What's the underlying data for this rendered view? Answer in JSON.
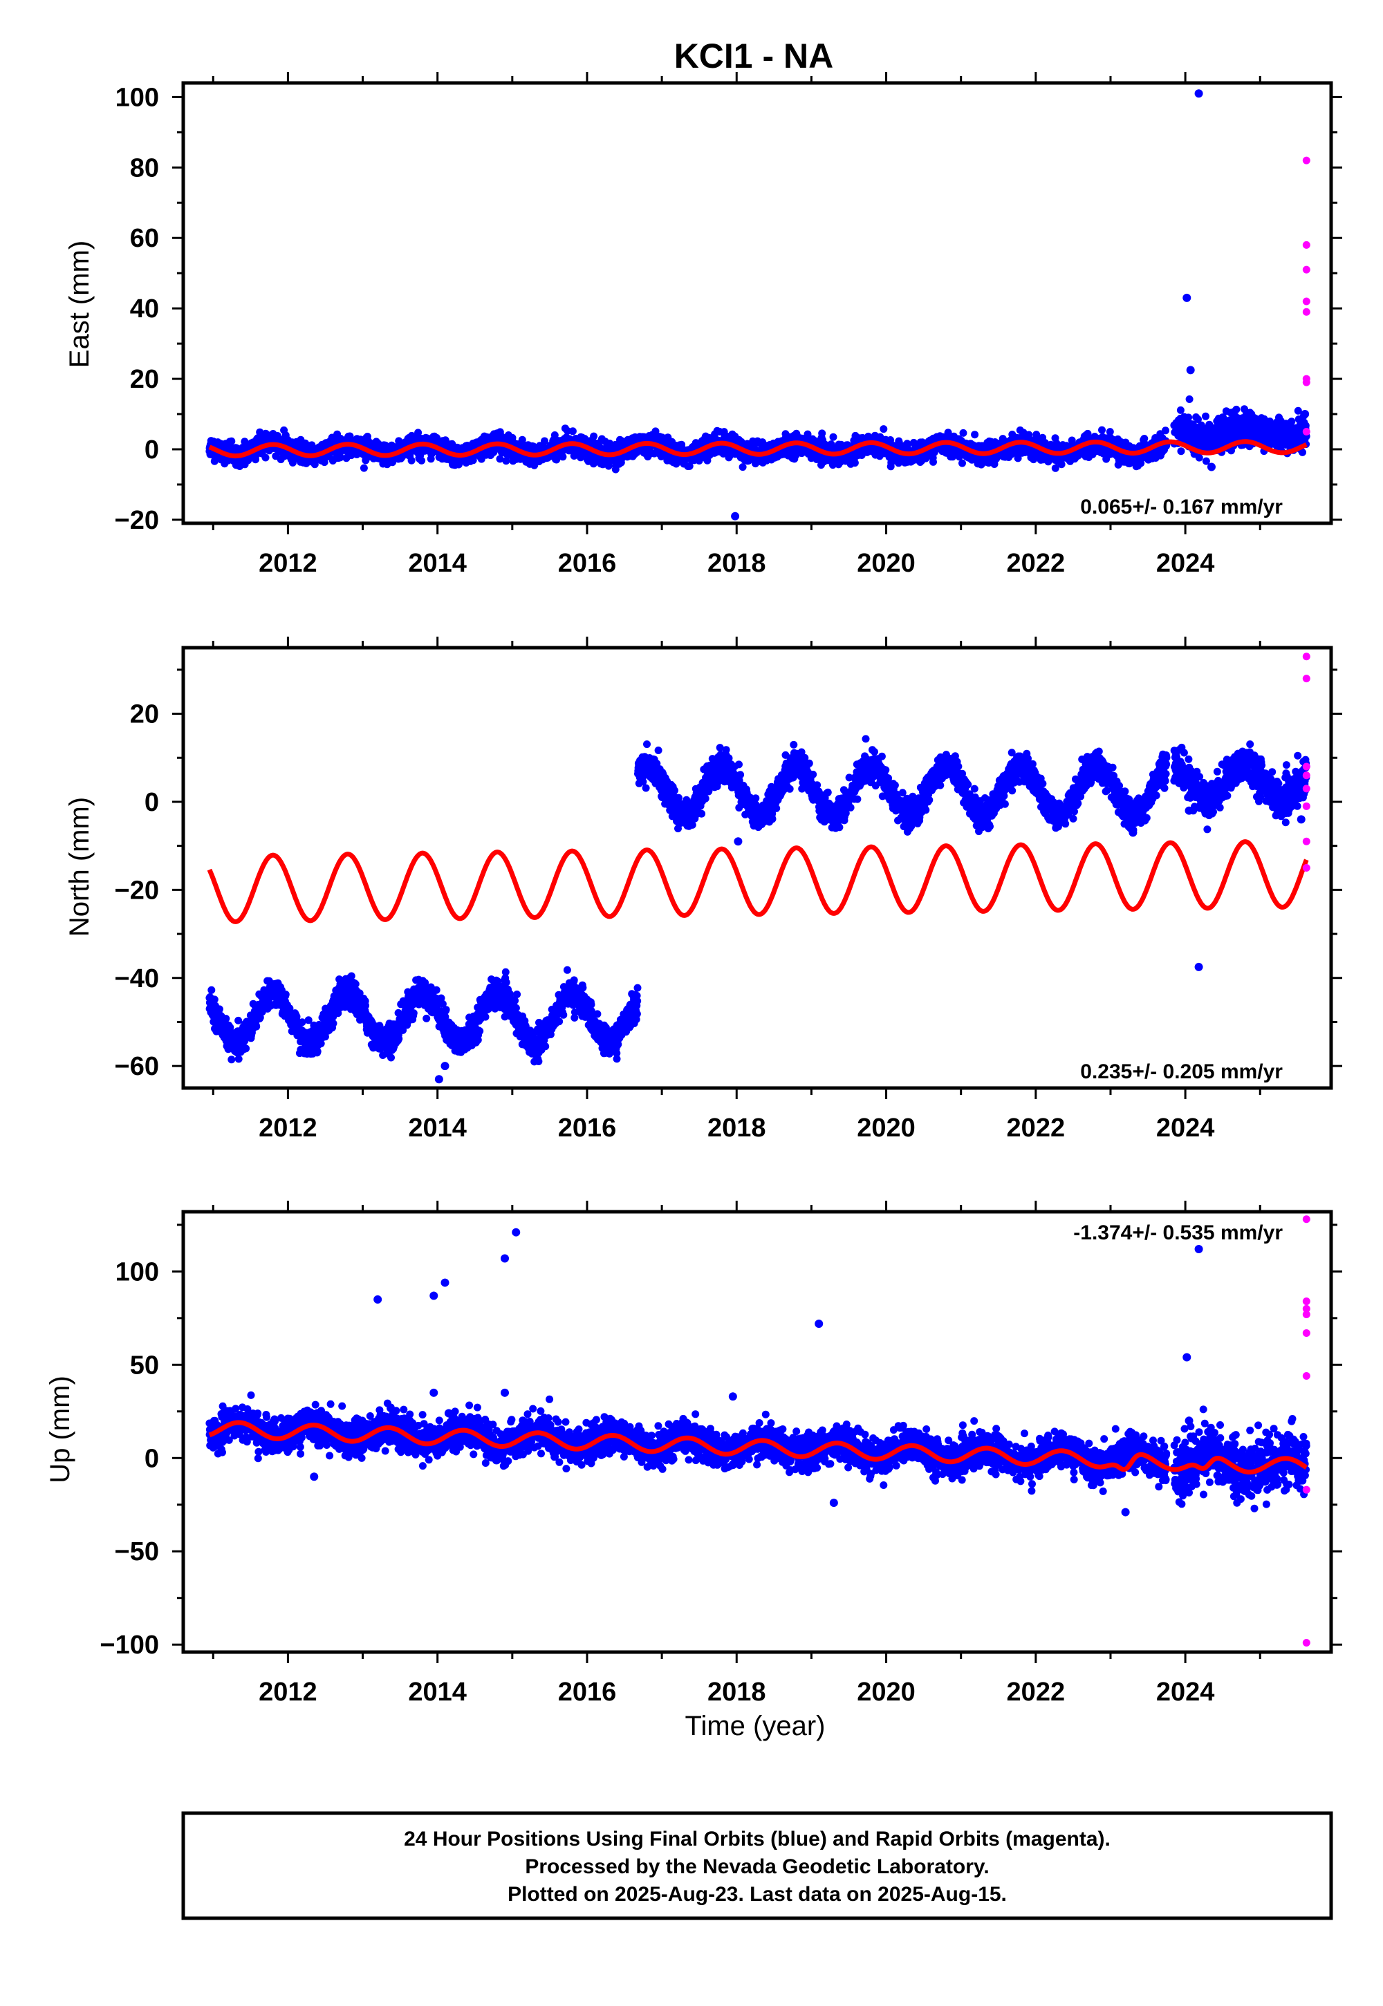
{
  "title": "KCI1 - NA",
  "colors": {
    "final": "#0000ff",
    "rapid": "#ff00ff",
    "model": "#ff0000",
    "frame": "#000000"
  },
  "chart_data": [
    {
      "type": "scatter",
      "panel": "east",
      "ylabel": "East (mm)",
      "xlabel": "",
      "xlim": [
        2010.6,
        2025.95
      ],
      "ylim": [
        -21,
        104
      ],
      "xticks": [
        "2012",
        "2014",
        "2016",
        "2018",
        "2020",
        "2022",
        "2024"
      ],
      "yticks": [
        "100",
        "80",
        "60",
        "40",
        "20",
        "0",
        "−20"
      ],
      "rate_text": "0.065+/- 0.167 mm/yr",
      "rate_position": "bottom-right",
      "series": [
        {
          "role": "final_orbits",
          "description_values": "daily positions",
          "segments": [
            {
              "from": 2010.95,
              "to": 2023.75,
              "offset": 0.0,
              "amp": 1.5,
              "phase": 0.55,
              "noise": 1.4,
              "trend": 0.0
            },
            {
              "from": 2023.85,
              "to": 2025.62,
              "offset": 0.5,
              "amp": 1.5,
              "phase": 0.55,
              "noise": 2.3,
              "trend": 0.3
            }
          ],
          "outliers": [
            [
              2024.02,
              43
            ],
            [
              2024.07,
              22.5
            ],
            [
              2024.18,
              101
            ],
            [
              2017.98,
              -19
            ],
            [
              2024.1,
              7
            ],
            [
              2024.5,
              9
            ],
            [
              2024.7,
              8
            ],
            [
              2025.6,
              10
            ],
            [
              2025.55,
              8
            ],
            [
              2024.35,
              -5
            ]
          ]
        },
        {
          "role": "rapid_orbits",
          "points": [
            [
              2025.62,
              82
            ],
            [
              2025.62,
              58
            ],
            [
              2025.62,
              51
            ],
            [
              2025.62,
              42
            ],
            [
              2025.62,
              39
            ],
            [
              2025.62,
              20
            ],
            [
              2025.62,
              19
            ],
            [
              2025.62,
              5
            ]
          ]
        },
        {
          "role": "model_fit",
          "from": 2010.95,
          "to": 2025.62,
          "offset": -0.3,
          "trend": 0.065,
          "amp": 1.6,
          "phase": 0.55
        }
      ]
    },
    {
      "type": "scatter",
      "panel": "north",
      "ylabel": "North (mm)",
      "xlabel": "",
      "xlim": [
        2010.6,
        2025.95
      ],
      "ylim": [
        -65,
        35
      ],
      "xticks": [
        "2012",
        "2014",
        "2016",
        "2018",
        "2020",
        "2022",
        "2024"
      ],
      "yticks": [
        "20",
        "0",
        "−20",
        "−40",
        "−60"
      ],
      "rate_text": "0.235+/- 0.205 mm/yr",
      "rate_position": "bottom-right",
      "series": [
        {
          "role": "final_orbits",
          "segments": [
            {
              "from": 2010.95,
              "to": 2016.68,
              "offset": -49,
              "amp": 5.5,
              "phase": 0.55,
              "noise": 1.6,
              "trend": 0.0
            },
            {
              "from": 2016.68,
              "to": 2023.75,
              "offset": 2.5,
              "amp": 5.5,
              "phase": 0.55,
              "noise": 1.6,
              "trend": 0.0
            },
            {
              "from": 2023.85,
              "to": 2025.62,
              "offset": 4.5,
              "amp": 4.0,
              "phase": 0.55,
              "noise": 2.0,
              "trend": 0.0
            }
          ],
          "outliers": [
            [
              2014.02,
              -63
            ],
            [
              2014.1,
              -60
            ],
            [
              2024.18,
              -37.5
            ],
            [
              2023.3,
              -7
            ],
            [
              2018.02,
              -9
            ],
            [
              2025.55,
              -4
            ],
            [
              2024.05,
              -2
            ]
          ]
        },
        {
          "role": "rapid_orbits",
          "points": [
            [
              2025.62,
              33
            ],
            [
              2025.62,
              28
            ],
            [
              2025.62,
              8
            ],
            [
              2025.62,
              6
            ],
            [
              2025.62,
              3
            ],
            [
              2025.62,
              -1
            ],
            [
              2025.62,
              -9
            ],
            [
              2025.62,
              -15
            ]
          ]
        },
        {
          "role": "model_fit",
          "from": 2010.95,
          "to": 2025.62,
          "offset": -19.8,
          "trend": 0.235,
          "amp": 7.5,
          "phase": 0.55
        }
      ]
    },
    {
      "type": "scatter",
      "panel": "up",
      "ylabel": "Up (mm)",
      "xlabel": "Time (year)",
      "xlim": [
        2010.6,
        2025.95
      ],
      "ylim": [
        -104,
        132
      ],
      "xticks": [
        "2012",
        "2014",
        "2016",
        "2018",
        "2020",
        "2022",
        "2024"
      ],
      "yticks": [
        "100",
        "50",
        "0",
        "−50",
        "−100"
      ],
      "rate_text": "-1.374+/- 0.535 mm/yr",
      "rate_position": "top-right",
      "series": [
        {
          "role": "final_orbits",
          "segments": [
            {
              "from": 2010.95,
              "to": 2023.75,
              "offset": 16,
              "amp": 4.0,
              "phase": 0.1,
              "noise": 4.5,
              "trend": -1.374
            },
            {
              "from": 2023.85,
              "to": 2025.62,
              "offset": 16,
              "amp": 4.5,
              "phase": 0.1,
              "noise": 7.5,
              "trend": -1.374
            }
          ],
          "outliers": [
            [
              2013.2,
              85
            ],
            [
              2013.95,
              87
            ],
            [
              2014.1,
              94
            ],
            [
              2014.9,
              107
            ],
            [
              2015.05,
              121
            ],
            [
              2013.95,
              35
            ],
            [
              2014.9,
              35
            ],
            [
              2014.15,
              24
            ],
            [
              2019.1,
              72
            ],
            [
              2017.95,
              33
            ],
            [
              2024.02,
              54
            ],
            [
              2024.18,
              112
            ],
            [
              2024.05,
              20
            ],
            [
              2023.2,
              -29
            ],
            [
              2019.3,
              -24
            ],
            [
              2012.35,
              -10
            ]
          ]
        },
        {
          "role": "rapid_orbits",
          "points": [
            [
              2025.62,
              128
            ],
            [
              2025.62,
              84
            ],
            [
              2025.62,
              80
            ],
            [
              2025.62,
              77
            ],
            [
              2025.62,
              67
            ],
            [
              2025.62,
              44
            ],
            [
              2025.62,
              -17
            ],
            [
              2025.62,
              -99
            ]
          ]
        },
        {
          "role": "model_fit",
          "from": 2010.95,
          "to": 2025.62,
          "offset": 15.5,
          "trend": -1.374,
          "amp": 4.0,
          "phase": 0.1,
          "extra_dips": [
            [
              2023.2,
              -7
            ],
            [
              2024.25,
              -6
            ]
          ]
        }
      ]
    }
  ],
  "footer": {
    "line1": "24 Hour Positions Using Final Orbits (blue) and Rapid Orbits (magenta).",
    "line2": "Processed by the Nevada Geodetic Laboratory.",
    "line3": "Plotted on 2025-Aug-23. Last data on 2025-Aug-15."
  }
}
